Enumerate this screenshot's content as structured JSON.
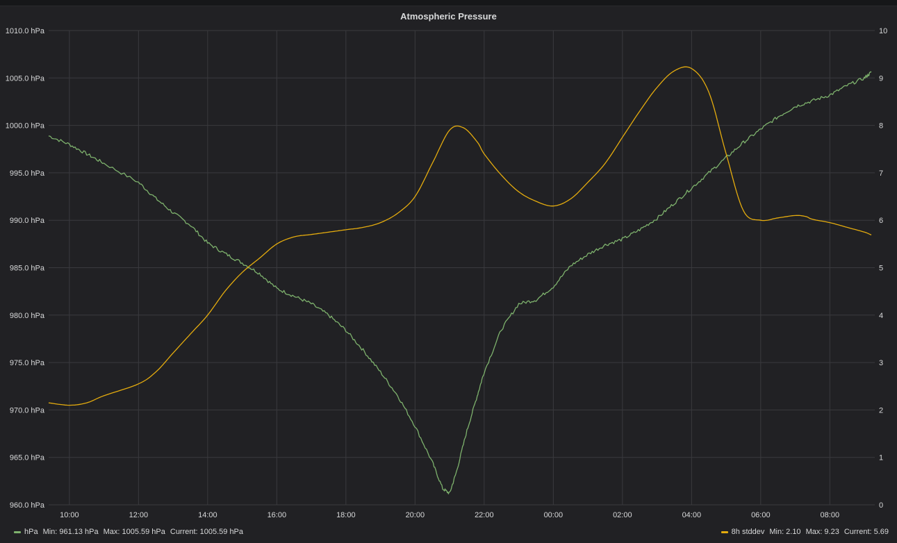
{
  "panel": {
    "title": "Atmospheric Pressure"
  },
  "colors": {
    "background": "#212124",
    "grid": "#3a3a3e",
    "series_hpa": "#7eb26d",
    "series_std": "#e5ac0e"
  },
  "legend": {
    "hpa": {
      "name": "hPa",
      "min_label": "Min:",
      "min": "961.13 hPa",
      "max_label": "Max:",
      "max": "1005.59 hPa",
      "current_label": "Current:",
      "current": "1005.59 hPa"
    },
    "std": {
      "name": "8h stddev",
      "min_label": "Min:",
      "min": "2.10",
      "max_label": "Max:",
      "max": "9.23",
      "current_label": "Current:",
      "current": "5.69"
    }
  },
  "chart_data": {
    "type": "line",
    "title": "Atmospheric Pressure",
    "xlim": [
      9.4,
      33.3
    ],
    "x_ticks": [
      10,
      12,
      14,
      16,
      18,
      20,
      22,
      24,
      26,
      28,
      30,
      32
    ],
    "x_tick_labels": [
      "10:00",
      "12:00",
      "14:00",
      "16:00",
      "18:00",
      "20:00",
      "22:00",
      "00:00",
      "02:00",
      "04:00",
      "06:00",
      "08:00"
    ],
    "y_left": {
      "lim": [
        960,
        1010
      ],
      "ticks": [
        960,
        965,
        970,
        975,
        980,
        985,
        990,
        995,
        1000,
        1005,
        1010
      ],
      "tick_labels": [
        "960.0 hPa",
        "965.0 hPa",
        "970.0 hPa",
        "975.0 hPa",
        "980.0 hPa",
        "985.0 hPa",
        "990.0 hPa",
        "995.0 hPa",
        "1000.0 hPa",
        "1005.0 hPa",
        "1010.0 hPa"
      ]
    },
    "y_right": {
      "lim": [
        0,
        10
      ],
      "ticks": [
        0,
        1,
        2,
        3,
        4,
        5,
        6,
        7,
        8,
        9,
        10
      ],
      "tick_labels": [
        "0",
        "1",
        "2",
        "3",
        "4",
        "5",
        "6",
        "7",
        "8",
        "9",
        "10"
      ]
    },
    "grid": true,
    "legend_position": "bottom",
    "series": [
      {
        "name": "hPa",
        "axis": "left",
        "color": "#7eb26d",
        "x": [
          9.4,
          10.0,
          10.5,
          11.0,
          12.0,
          12.5,
          13.0,
          13.5,
          14.0,
          14.5,
          15.0,
          15.5,
          16.0,
          16.5,
          17.0,
          17.5,
          18.0,
          18.5,
          19.0,
          19.5,
          20.0,
          20.5,
          20.8,
          21.0,
          21.2,
          21.5,
          21.8,
          22.0,
          22.5,
          23.0,
          23.5,
          24.0,
          24.5,
          25.0,
          25.5,
          26.0,
          26.5,
          27.0,
          27.5,
          28.0,
          28.5,
          29.0,
          29.5,
          30.0,
          30.5,
          31.0,
          31.5,
          32.0,
          32.5,
          33.0,
          33.2
        ],
        "values": [
          998.9,
          998.0,
          997.0,
          996.0,
          994.0,
          992.3,
          990.8,
          989.5,
          987.6,
          986.5,
          985.5,
          984.4,
          982.8,
          982.0,
          981.2,
          980.0,
          978.4,
          976.3,
          974.0,
          971.5,
          968.3,
          964.5,
          961.7,
          961.2,
          963.5,
          967.8,
          971.5,
          974.0,
          978.5,
          981.2,
          981.6,
          983.0,
          985.2,
          986.4,
          987.4,
          988.0,
          989.0,
          990.2,
          991.8,
          993.4,
          995.0,
          996.6,
          998.2,
          999.6,
          1000.9,
          1002.0,
          1002.6,
          1003.2,
          1004.2,
          1005.0,
          1005.6
        ]
      },
      {
        "name": "8h stddev",
        "axis": "right",
        "color": "#e5ac0e",
        "x": [
          9.4,
          10.0,
          10.5,
          11.0,
          12.0,
          12.5,
          13.0,
          13.5,
          14.0,
          14.5,
          15.0,
          15.5,
          16.0,
          16.5,
          17.0,
          17.5,
          18.0,
          18.5,
          19.0,
          19.5,
          20.0,
          20.5,
          21.0,
          21.4,
          21.8,
          22.0,
          22.5,
          23.0,
          23.5,
          24.0,
          24.5,
          25.0,
          25.5,
          26.0,
          26.5,
          27.0,
          27.5,
          28.0,
          28.5,
          29.0,
          29.5,
          30.0,
          30.5,
          31.0,
          31.3,
          31.5,
          32.0,
          32.5,
          33.0,
          33.2
        ],
        "values": [
          2.15,
          2.1,
          2.15,
          2.3,
          2.55,
          2.8,
          3.2,
          3.6,
          4.0,
          4.5,
          4.9,
          5.2,
          5.5,
          5.65,
          5.7,
          5.75,
          5.8,
          5.85,
          5.95,
          6.15,
          6.5,
          7.2,
          7.9,
          7.95,
          7.65,
          7.4,
          6.95,
          6.6,
          6.4,
          6.3,
          6.45,
          6.8,
          7.2,
          7.75,
          8.3,
          8.8,
          9.15,
          9.2,
          8.7,
          7.4,
          6.2,
          6.0,
          6.05,
          6.1,
          6.08,
          6.02,
          5.95,
          5.85,
          5.75,
          5.69
        ]
      }
    ]
  }
}
